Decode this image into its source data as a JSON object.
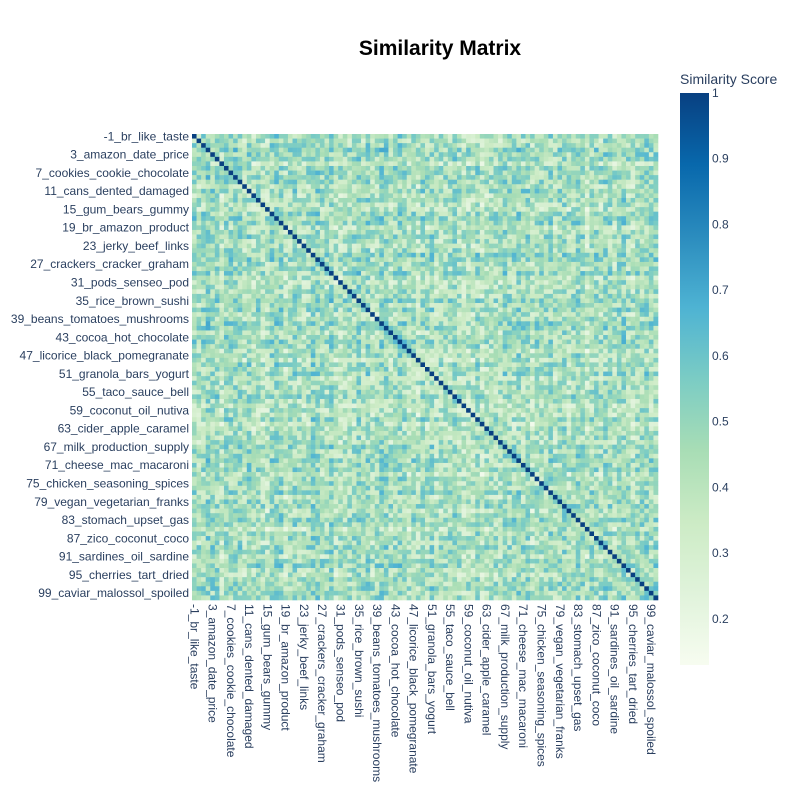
{
  "chart_data": {
    "type": "heatmap",
    "title": "Similarity Matrix",
    "colorbar": {
      "title": "Similarity Score",
      "range": [
        0.13,
        1.0
      ],
      "ticks": [
        "1",
        "0.9",
        "0.8",
        "0.7",
        "0.6",
        "0.5",
        "0.4",
        "0.3",
        "0.2"
      ],
      "colorscale": [
        "#f7fcf0",
        "#e0f3db",
        "#ccebc5",
        "#a8ddb5",
        "#7bccc4",
        "#4eb3d3",
        "#2b8cbe",
        "#0868ac",
        "#084081"
      ]
    },
    "size": 102,
    "diagonal_value": 1.0,
    "off_diagonal_range": [
      0.13,
      0.75
    ],
    "tick_labels": [
      "-1_br_like_taste",
      "3_amazon_date_price",
      "7_cookies_cookie_chocolate",
      "11_cans_dented_damaged",
      "15_gum_bears_gummy",
      "19_br_amazon_product",
      "23_jerky_beef_links",
      "27_crackers_cracker_graham",
      "31_pods_senseo_pod",
      "35_rice_brown_sushi",
      "39_beans_tomatoes_mushrooms",
      "43_cocoa_hot_chocolate",
      "47_licorice_black_pomegranate",
      "51_granola_bars_yogurt",
      "55_taco_sauce_bell",
      "59_coconut_oil_nutiva",
      "63_cider_apple_caramel",
      "67_milk_production_supply",
      "71_cheese_mac_macaroni",
      "75_chicken_seasoning_spices",
      "79_vegan_vegetarian_franks",
      "83_stomach_upset_gas",
      "87_zico_coconut_coco",
      "91_sardines_oil_sardine",
      "95_cherries_tart_dried",
      "99_caviar_malossol_spoiled"
    ]
  }
}
